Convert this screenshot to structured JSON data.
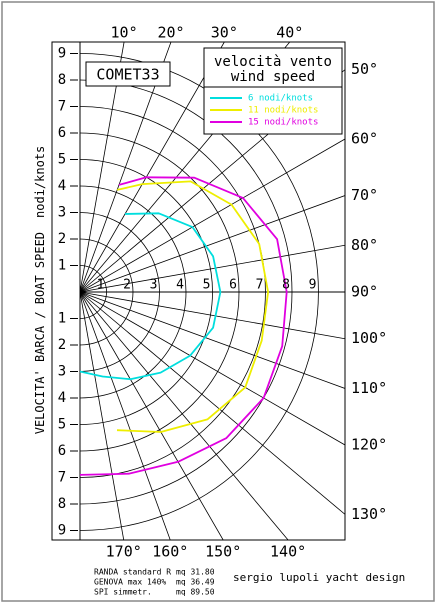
{
  "chart_data": {
    "type": "polar",
    "title": "COMET33",
    "legend_title": [
      "velocità vento",
      "wind speed"
    ],
    "y_label": "VELOCITA' BARCA / BOAT SPEED",
    "y_unit": "nodi/knots",
    "x": [
      20,
      30,
      45,
      60,
      75,
      90,
      105,
      120,
      135,
      150,
      165,
      180
    ],
    "series": [
      {
        "name": "6 nodi/knots",
        "color": "#00dede",
        "values": [
          null,
          3.4,
          4.2,
          4.9,
          5.2,
          5.3,
          5.2,
          4.8,
          4.3,
          3.8,
          3.3,
          3.0
        ]
      },
      {
        "name": "11 nodi/knots",
        "color": "#eeee00",
        "values": [
          4.1,
          4.7,
          5.9,
          6.6,
          7.0,
          7.1,
          7.1,
          7.2,
          6.8,
          6.1,
          5.4,
          null
        ]
      },
      {
        "name": "15 nodi/knots",
        "color": "#e000e0",
        "values": [
          4.3,
          5.0,
          6.1,
          7.1,
          7.7,
          7.8,
          7.9,
          8.0,
          7.8,
          7.4,
          7.1,
          6.9
        ]
      }
    ],
    "rlim": [
      0,
      9
    ],
    "rticks": [
      1,
      2,
      3,
      4,
      5,
      6,
      7,
      8,
      9
    ],
    "angleticks": [
      {
        "value": 10,
        "label": "10°"
      },
      {
        "value": 20,
        "label": "20°"
      },
      {
        "value": 30,
        "label": "30°"
      },
      {
        "value": 40,
        "label": "40°"
      },
      {
        "value": 50,
        "label": "50°"
      },
      {
        "value": 60,
        "label": "60°"
      },
      {
        "value": 70,
        "label": "70°"
      },
      {
        "value": 80,
        "label": "80°"
      },
      {
        "value": 90,
        "label": "90°"
      },
      {
        "value": 100,
        "label": "100°"
      },
      {
        "value": 110,
        "label": "110°"
      },
      {
        "value": 120,
        "label": "120°"
      },
      {
        "value": 130,
        "label": "130°"
      },
      {
        "value": 140,
        "label": "140°"
      },
      {
        "value": 150,
        "label": "150°"
      },
      {
        "value": 160,
        "label": "160°"
      },
      {
        "value": 170,
        "label": "170°"
      }
    ],
    "grid": true,
    "notes": [
      [
        "RANDA   standard R",
        "mq 31.80"
      ],
      [
        "GENOVA  max 140%",
        "mq 36.49"
      ],
      [
        "SPI   simmetr.",
        "mq 89.50"
      ]
    ],
    "credit": "sergio lupoli yacht design"
  }
}
